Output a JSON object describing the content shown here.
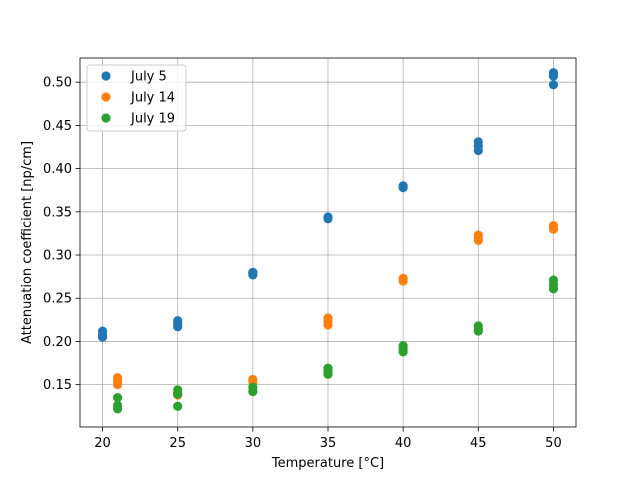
{
  "chart_data": {
    "type": "scatter",
    "title": "",
    "xlabel": "Temperature [°C]",
    "ylabel": "Attenuation coefficient [np/cm]",
    "xlim": [
      18.5,
      51.5
    ],
    "ylim": [
      0.101,
      0.528
    ],
    "xticks": [
      20,
      25,
      30,
      35,
      40,
      45,
      50
    ],
    "yticks": [
      0.15,
      0.2,
      0.25,
      0.3,
      0.35,
      0.4,
      0.45,
      0.5
    ],
    "ytick_labels": [
      "0.15",
      "0.20",
      "0.25",
      "0.30",
      "0.35",
      "0.40",
      "0.45",
      "0.50"
    ],
    "grid": true,
    "legend_position": "top-left",
    "series": [
      {
        "name": "July 5",
        "color": "#1f77b4",
        "points": [
          [
            20,
            0.205
          ],
          [
            20,
            0.208
          ],
          [
            20,
            0.212
          ],
          [
            25,
            0.217
          ],
          [
            25,
            0.221
          ],
          [
            25,
            0.224
          ],
          [
            30,
            0.277
          ],
          [
            30,
            0.279
          ],
          [
            30,
            0.28
          ],
          [
            35,
            0.342
          ],
          [
            35,
            0.344
          ],
          [
            40,
            0.378
          ],
          [
            40,
            0.38
          ],
          [
            45,
            0.421
          ],
          [
            45,
            0.426
          ],
          [
            45,
            0.431
          ],
          [
            50,
            0.497
          ],
          [
            50,
            0.507
          ],
          [
            50,
            0.511
          ]
        ]
      },
      {
        "name": "July 14",
        "color": "#ff7f0e",
        "points": [
          [
            21,
            0.15
          ],
          [
            21,
            0.154
          ],
          [
            21,
            0.158
          ],
          [
            25,
            0.138
          ],
          [
            25,
            0.141
          ],
          [
            30,
            0.153
          ],
          [
            30,
            0.156
          ],
          [
            35,
            0.219
          ],
          [
            35,
            0.223
          ],
          [
            35,
            0.227
          ],
          [
            40,
            0.27
          ],
          [
            40,
            0.273
          ],
          [
            45,
            0.317
          ],
          [
            45,
            0.32
          ],
          [
            45,
            0.323
          ],
          [
            50,
            0.33
          ],
          [
            50,
            0.334
          ]
        ]
      },
      {
        "name": "July 19",
        "color": "#2ca02c",
        "points": [
          [
            21,
            0.122
          ],
          [
            21,
            0.126
          ],
          [
            21,
            0.135
          ],
          [
            25,
            0.125
          ],
          [
            25,
            0.139
          ],
          [
            25,
            0.144
          ],
          [
            30,
            0.142
          ],
          [
            30,
            0.147
          ],
          [
            35,
            0.162
          ],
          [
            35,
            0.166
          ],
          [
            35,
            0.169
          ],
          [
            40,
            0.188
          ],
          [
            40,
            0.192
          ],
          [
            40,
            0.195
          ],
          [
            45,
            0.212
          ],
          [
            45,
            0.215
          ],
          [
            45,
            0.218
          ],
          [
            50,
            0.261
          ],
          [
            50,
            0.266
          ],
          [
            50,
            0.271
          ]
        ]
      }
    ]
  }
}
